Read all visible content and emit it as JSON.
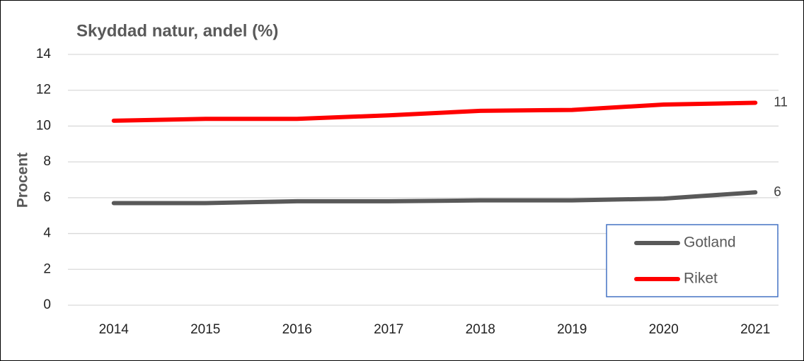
{
  "chart_data": {
    "type": "line",
    "title": "Skyddad natur, andel (%)",
    "y_label": "Procent",
    "categories": [
      "2014",
      "2015",
      "2016",
      "2017",
      "2018",
      "2019",
      "2020",
      "2021"
    ],
    "series": [
      {
        "name": "Gotland",
        "color": "#595959",
        "values": [
          5.7,
          5.7,
          5.8,
          5.8,
          5.85,
          5.85,
          5.95,
          6.3
        ],
        "value_labels": [
          null,
          null,
          null,
          null,
          null,
          null,
          null,
          "6"
        ]
      },
      {
        "name": "Riket",
        "color": "#ff0000",
        "values": [
          10.3,
          10.4,
          10.4,
          10.6,
          10.85,
          10.9,
          11.2,
          11.3
        ],
        "value_labels": [
          null,
          null,
          null,
          null,
          null,
          null,
          null,
          "11"
        ]
      }
    ],
    "ylim": [
      0,
      14
    ],
    "yticks": [
      0,
      2,
      4,
      6,
      8,
      10,
      12,
      14
    ],
    "grid": true,
    "legend": "lower right"
  }
}
